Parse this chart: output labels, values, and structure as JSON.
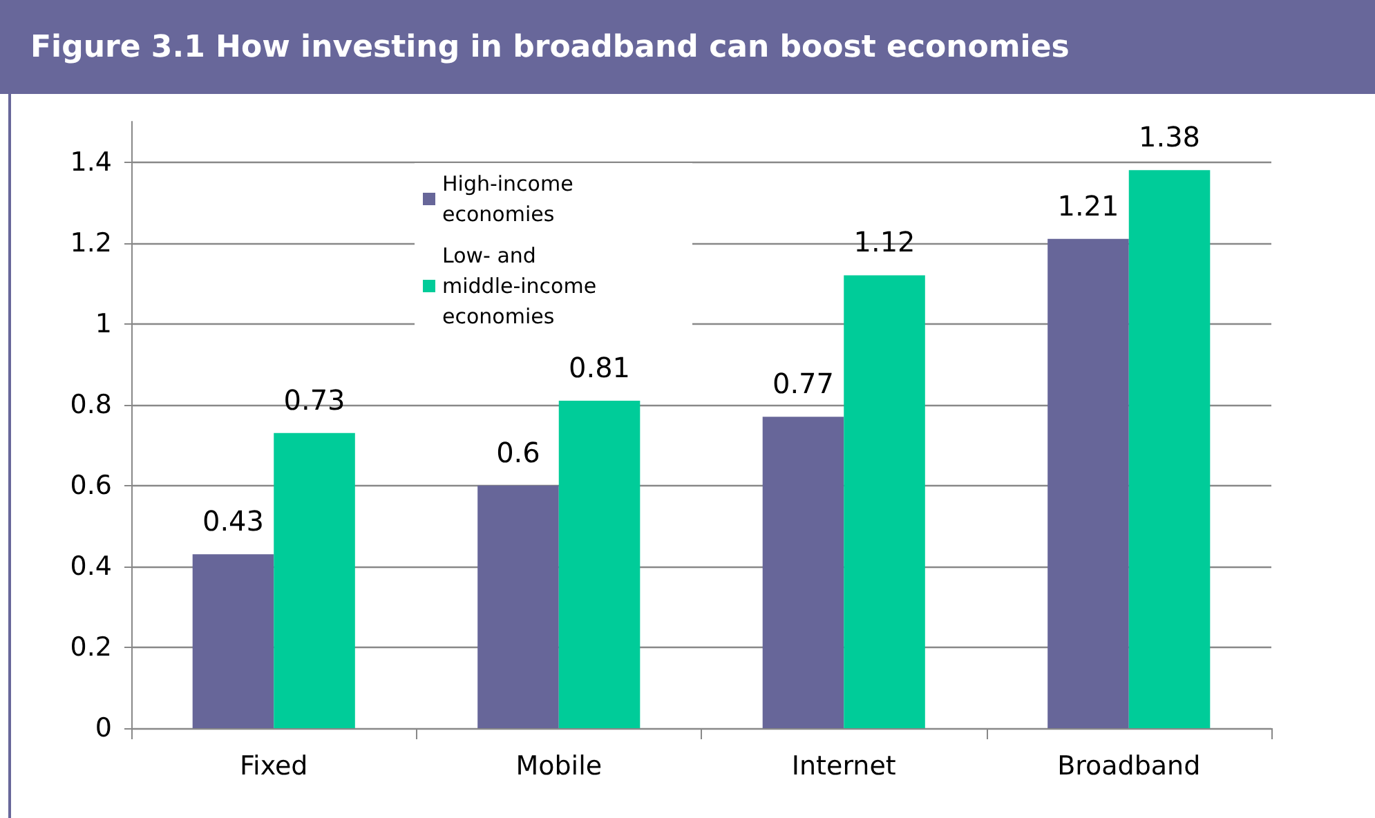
{
  "chart_data": {
    "type": "bar",
    "title": "Figure 3.1 How investing in broadband can boost economies",
    "categories": [
      "Fixed",
      "Mobile",
      "Internet",
      "Broadband"
    ],
    "series": [
      {
        "name": "High-income economies",
        "color": "#676699",
        "values": [
          0.43,
          0.6,
          0.77,
          1.21
        ]
      },
      {
        "name": "Low- and middle-income economies",
        "color": "#00cc99",
        "values": [
          0.73,
          0.81,
          1.12,
          1.38
        ]
      }
    ],
    "ylim": [
      0,
      1.5
    ],
    "yticks": [
      0,
      0.2,
      0.4,
      0.6,
      0.8,
      1,
      1.2,
      1.4
    ],
    "grid": "y",
    "legend": "top",
    "data_labels": true
  }
}
